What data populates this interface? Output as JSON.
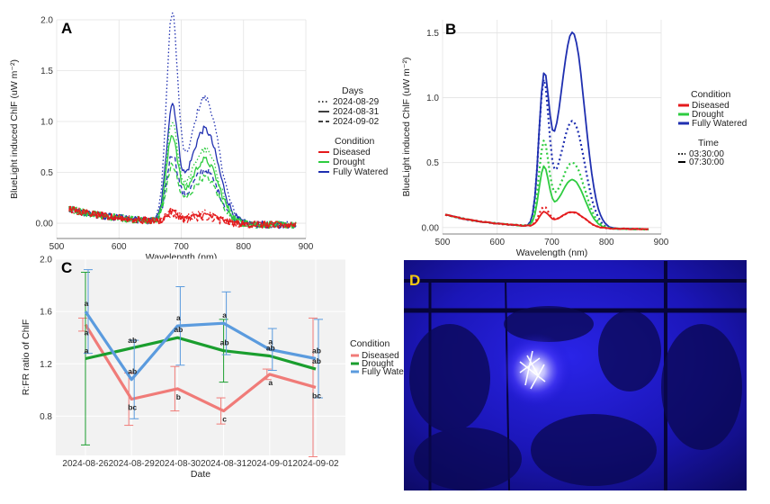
{
  "chart_data": [
    {
      "panel": "A",
      "type": "line",
      "xlabel": "Wavelength (nm)",
      "ylabel": "BlueLight induced ChlF (uW m⁻²)",
      "xlim": [
        500,
        900
      ],
      "ylim": [
        -0.15,
        2.0
      ],
      "xticks": [
        500,
        600,
        700,
        800,
        900
      ],
      "yticks": [
        0.0,
        0.5,
        1.0,
        1.5,
        2.0
      ],
      "ytick_labels": [
        "0.00",
        "0.5",
        "1.0",
        "1.5",
        "2.0"
      ],
      "grid": true,
      "legend_days_title": "Days",
      "legend_days": [
        "2024-08-29",
        "2024-08-31",
        "2024-09-02"
      ],
      "legend_condition_title": "Condition",
      "legend_condition": [
        "Diseased",
        "Drought",
        "Fully Watered"
      ],
      "condition_colors": [
        "#e41a1c",
        "#2ecc40",
        "#1f2fb0"
      ],
      "series": [
        {
          "condition": "Fully Watered",
          "day": "2024-08-29",
          "peak1": 1.9,
          "peak2": 1.23
        },
        {
          "condition": "Fully Watered",
          "day": "2024-08-31",
          "peak1": 1.05,
          "peak2": 0.92
        },
        {
          "condition": "Fully Watered",
          "day": "2024-09-02",
          "peak1": 0.6,
          "peak2": 0.52
        },
        {
          "condition": "Drought",
          "day": "2024-08-29",
          "peak1": 0.9,
          "peak2": 0.72
        },
        {
          "condition": "Drought",
          "day": "2024-08-31",
          "peak1": 0.78,
          "peak2": 0.62
        },
        {
          "condition": "Drought",
          "day": "2024-09-02",
          "peak1": 0.5,
          "peak2": 0.45
        },
        {
          "condition": "Diseased",
          "day": "2024-08-29",
          "peak1": 0.12,
          "peak2": 0.1
        },
        {
          "condition": "Diseased",
          "day": "2024-08-31",
          "peak1": 0.09,
          "peak2": 0.08
        },
        {
          "condition": "Diseased",
          "day": "2024-09-02",
          "peak1": 0.07,
          "peak2": 0.06
        }
      ]
    },
    {
      "panel": "B",
      "type": "line",
      "xlabel": "Wavelength (nm)",
      "ylabel": "BlueLight induced ChlF (uW m⁻²)",
      "xlim": [
        500,
        900
      ],
      "ylim": [
        -0.05,
        1.6
      ],
      "xticks": [
        500,
        600,
        700,
        800,
        900
      ],
      "yticks": [
        0.0,
        0.5,
        1.0,
        1.5
      ],
      "ytick_labels": [
        "0.00",
        "0.5",
        "1.0",
        "1.5"
      ],
      "grid": true,
      "legend_condition_title": "Condition",
      "legend_condition": [
        "Diseased",
        "Drought",
        "Fully Watered"
      ],
      "legend_time_title": "Time",
      "legend_time": [
        "03:30:00",
        "07:30:00"
      ],
      "condition_colors": [
        "#e41a1c",
        "#2ecc40",
        "#1f2fb0"
      ],
      "series": [
        {
          "condition": "Fully Watered",
          "time": "03:30:00",
          "peak1": 1.03,
          "peak2": 0.82
        },
        {
          "condition": "Fully Watered",
          "time": "07:30:00",
          "peak1": 1.0,
          "peak2": 1.5
        },
        {
          "condition": "Drought",
          "time": "03:30:00",
          "peak1": 0.6,
          "peak2": 0.5
        },
        {
          "condition": "Drought",
          "time": "07:30:00",
          "peak1": 0.42,
          "peak2": 0.37
        },
        {
          "condition": "Diseased",
          "time": "03:30:00",
          "peak1": 0.14,
          "peak2": 0.12
        },
        {
          "condition": "Diseased",
          "time": "07:30:00",
          "peak1": 0.1,
          "peak2": 0.12
        }
      ]
    },
    {
      "panel": "C",
      "type": "line",
      "xlabel": "Date",
      "ylabel": "R:FR ratio of ChlF",
      "ylim": [
        0.5,
        2.0
      ],
      "yticks": [
        0.8,
        1.2,
        1.6,
        2.0
      ],
      "ytick_labels": [
        "0.8",
        "1.2",
        "1.6",
        "2.0"
      ],
      "grid": true,
      "categories": [
        "2024-08-26",
        "2024-08-29",
        "2024-08-30",
        "2024-08-31",
        "2024-09-01",
        "2024-09-02"
      ],
      "legend_title": "Condition",
      "series": [
        {
          "name": "Diseased",
          "color": "#f07b78",
          "values": [
            1.5,
            0.93,
            1.01,
            0.84,
            1.12,
            1.02
          ],
          "err": [
            0.05,
            0.2,
            0.17,
            0.1,
            0.04,
            0.53
          ],
          "labels": [
            "a",
            "bc",
            "b",
            "c",
            "a",
            "bc"
          ]
        },
        {
          "name": "Drought",
          "color": "#1a9e2e",
          "values": [
            1.24,
            1.32,
            1.4,
            1.3,
            1.26,
            1.16
          ],
          "err": [
            0.66,
            0.0,
            0.0,
            0.24,
            0.0,
            0.0
          ],
          "labels": [
            "a",
            "ab",
            "ab",
            "ab",
            "ab",
            "ab"
          ]
        },
        {
          "name": "Fully Watered",
          "color": "#5b9bde",
          "values": [
            1.6,
            1.08,
            1.49,
            1.51,
            1.31,
            1.24
          ],
          "err": [
            0.32,
            0.3,
            0.3,
            0.24,
            0.16,
            0.3
          ],
          "labels": [
            "a",
            "ab",
            "a",
            "a",
            "a",
            "ab"
          ]
        }
      ]
    }
  ],
  "panels": {
    "a": "A",
    "b": "B",
    "c": "C",
    "d": "D"
  }
}
